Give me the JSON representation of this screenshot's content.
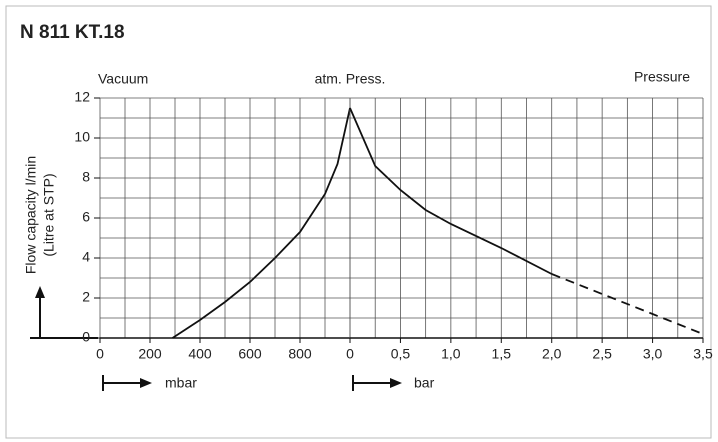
{
  "chart_data": [
    {
      "type": "line",
      "title": "N 811 KT.18",
      "ylabel": [
        "Flow capacity l/min",
        "(Litre at STP)"
      ],
      "annotation": "Vacuum",
      "xlabel": "mbar",
      "xlim": [
        0,
        1000
      ],
      "xticks": [
        0,
        200,
        400,
        600,
        800
      ],
      "grid_x_step": 100,
      "ylim": [
        0,
        12
      ],
      "yticks": [
        0,
        2,
        4,
        6,
        8,
        10,
        12
      ],
      "grid_y_step": 1,
      "grid": true,
      "series": [
        {
          "color": "#111111",
          "dash": false,
          "x": [
            290,
            400,
            500,
            600,
            700,
            800,
            900,
            950,
            1000
          ],
          "values": [
            0,
            0.9,
            1.8,
            2.8,
            4.0,
            5.3,
            7.2,
            8.7,
            11.5
          ]
        }
      ]
    },
    {
      "type": "line",
      "annotations": [
        "atm. Press.",
        "Pressure"
      ],
      "xlabel": "bar",
      "xlim": [
        0,
        3.5
      ],
      "xticks": [
        0,
        {
          "value": 0.5,
          "label": "0,5"
        },
        {
          "value": 1.0,
          "label": "1,0"
        },
        {
          "value": 1.5,
          "label": "1,5"
        },
        {
          "value": 2.0,
          "label": "2,0"
        },
        {
          "value": 2.5,
          "label": "2,5"
        },
        {
          "value": 3.0,
          "label": "3,0"
        },
        {
          "value": 3.5,
          "label": "3,5"
        }
      ],
      "grid_x_step": 0.25,
      "ylim": [
        0,
        12
      ],
      "grid_y_step": 1,
      "grid": true,
      "series": [
        {
          "color": "#111111",
          "dash": false,
          "x": [
            0,
            0.25,
            0.5,
            0.75,
            1.0,
            1.5,
            2.0
          ],
          "values": [
            11.5,
            8.6,
            7.4,
            6.4,
            5.7,
            4.5,
            3.2
          ]
        },
        {
          "color": "#111111",
          "dash": true,
          "x": [
            2.0,
            2.5,
            3.0,
            3.5
          ],
          "values": [
            3.2,
            2.2,
            1.2,
            0.2
          ]
        }
      ]
    }
  ]
}
